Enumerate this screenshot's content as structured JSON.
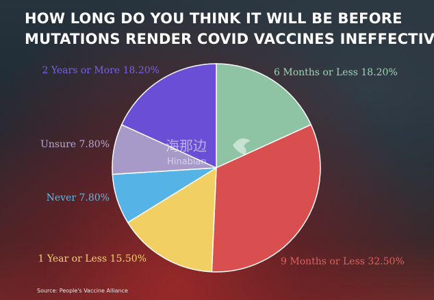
{
  "title": {
    "line1": "HOW LONG DO YOU THINK IT WILL BE BEFORE",
    "line2": "MUTATIONS RENDER COVID VACCINES INEFFECTIVE?"
  },
  "source": "Source: People's Vaccine Alliance",
  "watermark": {
    "cn": "海那边",
    "en": "Hinabian"
  },
  "chart_data": {
    "type": "pie",
    "slices": [
      {
        "label": "6 Months or Less",
        "value": 18.2,
        "display": "6 Months or Less 18.20%",
        "color": "#8ec4a4",
        "label_color": "#9fd6b3"
      },
      {
        "label": "9 Months or Less",
        "value": 32.5,
        "display": "9 Months or Less 32.50%",
        "color": "#d94f4f",
        "label_color": "#e2605c"
      },
      {
        "label": "1 Year or Less",
        "value": 15.5,
        "display": "1 Year or Less 15.50%",
        "color": "#f2cf63",
        "label_color": "#f4d36a"
      },
      {
        "label": "Never",
        "value": 7.8,
        "display": "Never 7.80%",
        "color": "#56b3e6",
        "label_color": "#5fbbea"
      },
      {
        "label": "Unsure",
        "value": 7.8,
        "display": "Unsure 7.80%",
        "color": "#a89ac8",
        "label_color": "#b8aad6"
      },
      {
        "label": "2 Years or More",
        "value": 18.2,
        "display": "2 Years or More 18.20%",
        "color": "#6a4fd6",
        "label_color": "#7a62e0"
      }
    ]
  }
}
